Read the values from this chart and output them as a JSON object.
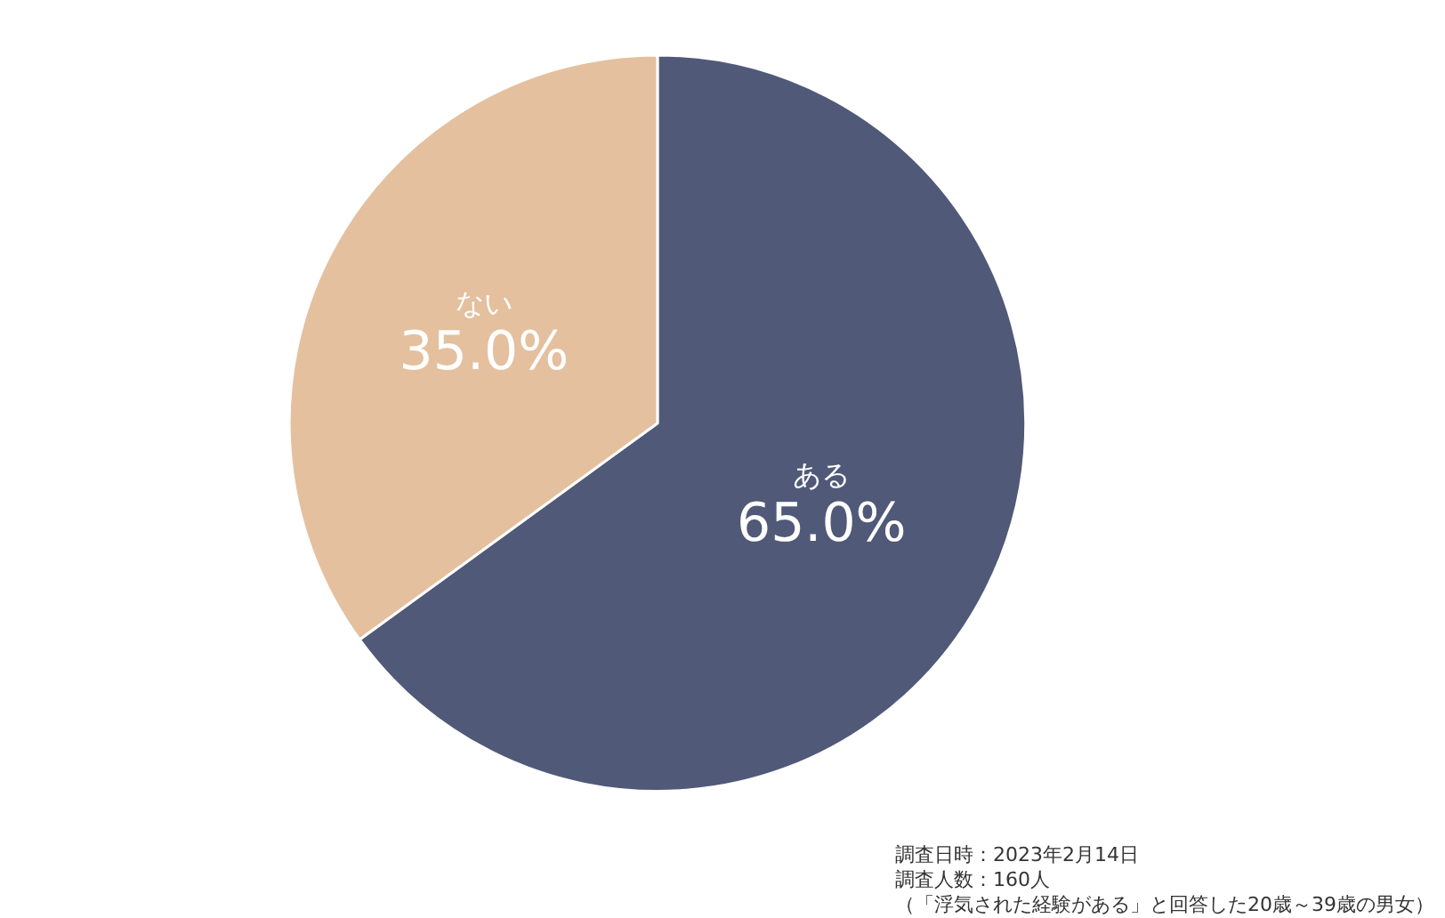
{
  "chart_data": {
    "type": "pie",
    "categories": [
      "ある",
      "ない"
    ],
    "values": [
      65.0,
      35.0
    ],
    "colors": [
      "#505977",
      "#e4c09f"
    ],
    "value_labels": [
      "65.0%",
      "35.0%"
    ],
    "legend": false,
    "annotations": [
      "調査日時：2023年2月14日",
      "調査人数：160人",
      "（「浮気された経験がある」と回答した20歳～39歳の男女）"
    ]
  }
}
